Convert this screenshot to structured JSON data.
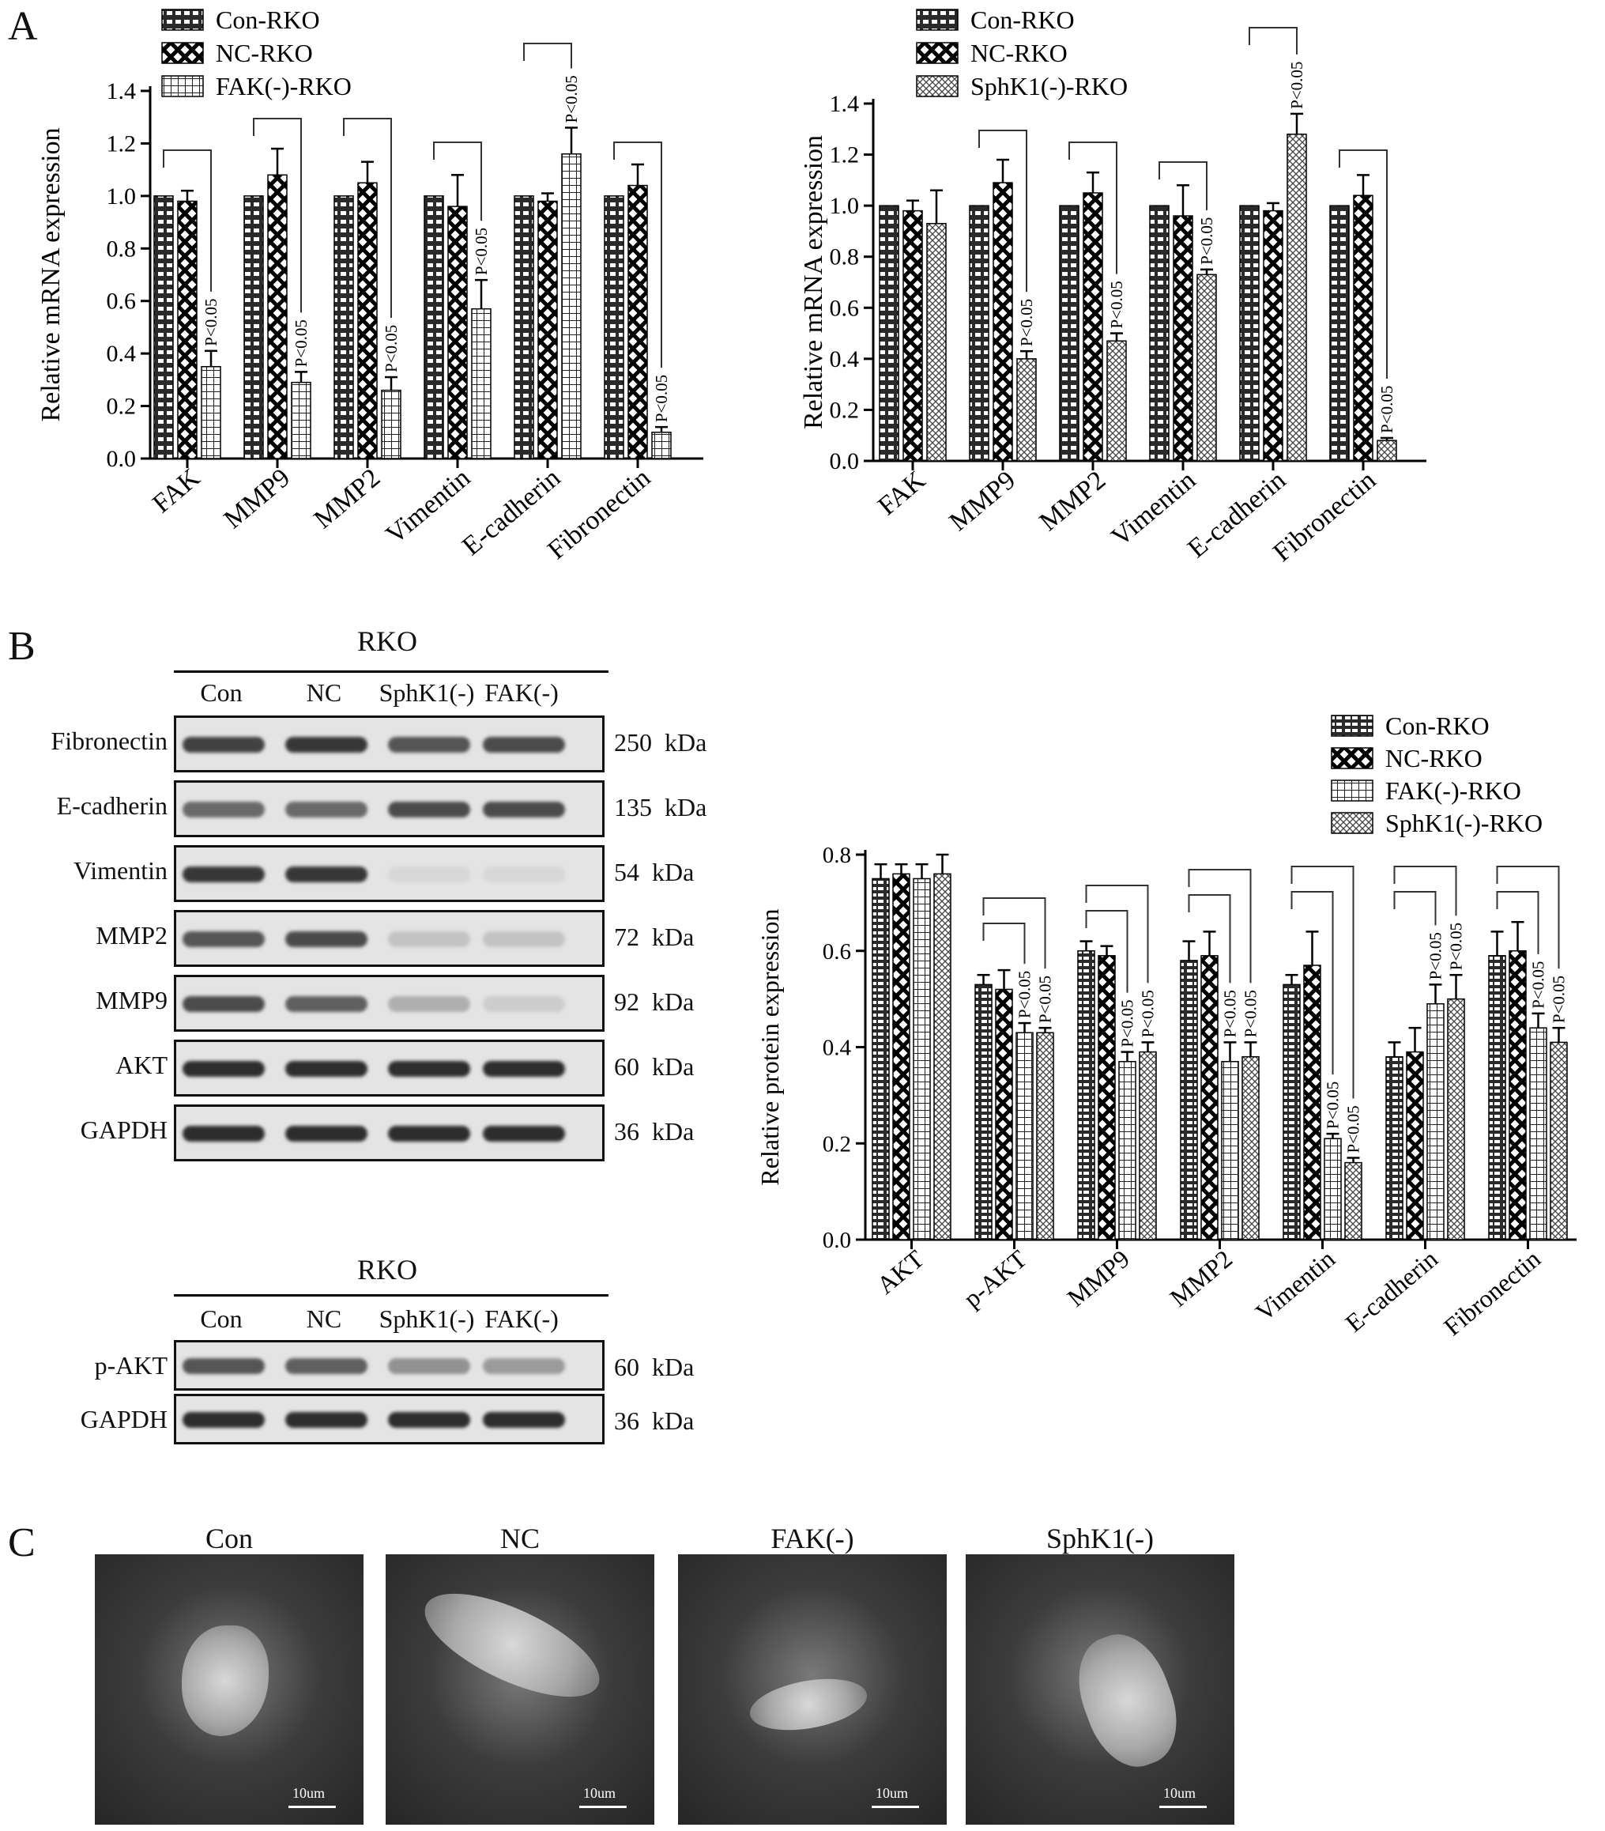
{
  "panels": {
    "a": "A",
    "b": "B",
    "c": "C"
  },
  "chart_data": [
    {
      "type": "bar",
      "ylabel": "Relative  mRNA expression",
      "ylim": [
        0,
        1.4
      ],
      "yticks": [
        "0.0",
        "0.2",
        "0.4",
        "0.6",
        "0.8",
        "1.0",
        "1.2",
        "1.4"
      ],
      "categories": [
        "FAK",
        "MMP9",
        "MMP2",
        "Vimentin",
        "E-cadherin",
        "Fibronectin"
      ],
      "series": [
        {
          "name": "Con-RKO",
          "pattern": "brick",
          "values": [
            1.0,
            1.0,
            1.0,
            1.0,
            1.0,
            1.0
          ],
          "errors": [
            0,
            0,
            0,
            0,
            0,
            0
          ]
        },
        {
          "name": "NC-RKO",
          "pattern": "cross",
          "values": [
            0.98,
            1.08,
            1.05,
            0.96,
            0.98,
            1.04
          ],
          "errors": [
            0.04,
            0.1,
            0.08,
            0.12,
            0.03,
            0.08
          ]
        },
        {
          "name": "FAK(-)-RKO",
          "pattern": "grid",
          "values": [
            0.35,
            0.29,
            0.26,
            0.57,
            1.16,
            0.1
          ],
          "errors": [
            0.06,
            0.04,
            0.05,
            0.11,
            0.1,
            0.02
          ]
        }
      ],
      "annotations": [
        {
          "category": 0,
          "series": 2,
          "text": "P<0.05",
          "bracket_from": 0,
          "bracket_to": 2
        },
        {
          "category": 1,
          "series": 2,
          "text": "P<0.05",
          "bracket_from": 0,
          "bracket_to": 2
        },
        {
          "category": 2,
          "series": 2,
          "text": "P<0.05",
          "bracket_from": 0,
          "bracket_to": 2
        },
        {
          "category": 3,
          "series": 2,
          "text": "P<0.05",
          "bracket_from": 0,
          "bracket_to": 2
        },
        {
          "category": 4,
          "series": 2,
          "text": "P<0.05",
          "bracket_from": 0,
          "bracket_to": 2
        },
        {
          "category": 5,
          "series": 2,
          "text": "P<0.05",
          "bracket_from": 0,
          "bracket_to": 2
        }
      ]
    },
    {
      "type": "bar",
      "ylabel": "Relative  mRNA expression",
      "ylim": [
        0,
        1.4
      ],
      "yticks": [
        "0.0",
        "0.2",
        "0.4",
        "0.6",
        "0.8",
        "1.0",
        "1.2",
        "1.4"
      ],
      "categories": [
        "FAK",
        "MMP9",
        "MMP2",
        "Vimentin",
        "E-cadherin",
        "Fibronectin"
      ],
      "series": [
        {
          "name": "Con-RKO",
          "pattern": "brick",
          "values": [
            1.0,
            1.0,
            1.0,
            1.0,
            1.0,
            1.0
          ],
          "errors": [
            0,
            0,
            0,
            0,
            0,
            0
          ]
        },
        {
          "name": "NC-RKO",
          "pattern": "cross",
          "values": [
            0.98,
            1.09,
            1.05,
            0.96,
            0.98,
            1.04
          ],
          "errors": [
            0.04,
            0.09,
            0.08,
            0.12,
            0.03,
            0.08
          ]
        },
        {
          "name": "SphK1(-)-RKO",
          "pattern": "dots",
          "values": [
            0.93,
            0.4,
            0.47,
            0.73,
            1.28,
            0.08
          ],
          "errors": [
            0.13,
            0.03,
            0.03,
            0.02,
            0.08,
            0.01
          ]
        }
      ],
      "annotations": [
        {
          "category": 1,
          "series": 2,
          "text": "P<0.05",
          "bracket_from": 0,
          "bracket_to": 2
        },
        {
          "category": 2,
          "series": 2,
          "text": "P<0.05",
          "bracket_from": 0,
          "bracket_to": 2
        },
        {
          "category": 3,
          "series": 2,
          "text": "P<0.05",
          "bracket_from": 0,
          "bracket_to": 2
        },
        {
          "category": 4,
          "series": 2,
          "text": "P<0.05",
          "bracket_from": 0,
          "bracket_to": 2
        },
        {
          "category": 5,
          "series": 2,
          "text": "P<0.05",
          "bracket_from": 0,
          "bracket_to": 2
        }
      ]
    },
    {
      "type": "bar",
      "ylabel": "Relative protein expression",
      "ylim": [
        0,
        0.8
      ],
      "yticks": [
        "0.0",
        "0.2",
        "0.4",
        "0.6",
        "0.8"
      ],
      "categories": [
        "AKT",
        "p-AKT",
        "MMP9",
        "MMP2",
        "Vimentin",
        "E-cadherin",
        "Fibronectin"
      ],
      "series": [
        {
          "name": "Con-RKO",
          "pattern": "brickH",
          "values": [
            0.75,
            0.53,
            0.6,
            0.58,
            0.53,
            0.38,
            0.59
          ],
          "errors": [
            0.03,
            0.02,
            0.02,
            0.04,
            0.02,
            0.03,
            0.05
          ]
        },
        {
          "name": "NC-RKO",
          "pattern": "cross",
          "values": [
            0.76,
            0.52,
            0.59,
            0.59,
            0.57,
            0.39,
            0.6
          ],
          "errors": [
            0.02,
            0.04,
            0.02,
            0.05,
            0.07,
            0.05,
            0.06
          ]
        },
        {
          "name": "FAK(-)-RKO",
          "pattern": "grid",
          "values": [
            0.75,
            0.43,
            0.37,
            0.37,
            0.21,
            0.49,
            0.44
          ],
          "errors": [
            0.03,
            0.02,
            0.02,
            0.04,
            0.01,
            0.04,
            0.03
          ]
        },
        {
          "name": "SphK1(-)-RKO",
          "pattern": "dots",
          "values": [
            0.76,
            0.43,
            0.39,
            0.38,
            0.16,
            0.5,
            0.41
          ],
          "errors": [
            0.04,
            0.01,
            0.02,
            0.03,
            0.01,
            0.05,
            0.03
          ]
        }
      ],
      "annotations": [
        {
          "category": 1,
          "series": 2,
          "text": "P<0.05",
          "bracket_from": 0,
          "bracket_to": 2
        },
        {
          "category": 1,
          "series": 3,
          "text": "P<0.05",
          "bracket_from": 0,
          "bracket_to": 3
        },
        {
          "category": 2,
          "series": 2,
          "text": "P<0.05",
          "bracket_from": 0,
          "bracket_to": 2
        },
        {
          "category": 2,
          "series": 3,
          "text": "P<0.05",
          "bracket_from": 0,
          "bracket_to": 3
        },
        {
          "category": 3,
          "series": 2,
          "text": "P<0.05",
          "bracket_from": 0,
          "bracket_to": 2
        },
        {
          "category": 3,
          "series": 3,
          "text": "P<0.05",
          "bracket_from": 0,
          "bracket_to": 3
        },
        {
          "category": 4,
          "series": 2,
          "text": "P<0.05",
          "bracket_from": 0,
          "bracket_to": 2
        },
        {
          "category": 4,
          "series": 3,
          "text": "P<0.05",
          "bracket_from": 0,
          "bracket_to": 3
        },
        {
          "category": 5,
          "series": 2,
          "text": "P<0.05",
          "bracket_from": 0,
          "bracket_to": 2
        },
        {
          "category": 5,
          "series": 3,
          "text": "P<0.05",
          "bracket_from": 0,
          "bracket_to": 3
        },
        {
          "category": 6,
          "series": 2,
          "text": "P<0.05",
          "bracket_from": 0,
          "bracket_to": 2
        },
        {
          "category": 6,
          "series": 3,
          "text": "P<0.05",
          "bracket_from": 0,
          "bracket_to": 3
        }
      ]
    }
  ],
  "blots": [
    {
      "title": "RKO",
      "lanes": [
        "Con",
        "NC",
        "SphK1(-)",
        "FAK(-)"
      ],
      "rows": [
        {
          "protein": "Fibronectin",
          "size": "250  kDa",
          "intensity": [
            0.85,
            0.9,
            0.75,
            0.8
          ]
        },
        {
          "protein": "E-cadherin",
          "size": "135  kDa",
          "intensity": [
            0.65,
            0.65,
            0.8,
            0.8
          ]
        },
        {
          "protein": "Vimentin",
          "size": "54  kDa",
          "intensity": [
            0.9,
            0.9,
            0.1,
            0.1
          ]
        },
        {
          "protein": "MMP2",
          "size": "72  kDa",
          "intensity": [
            0.75,
            0.8,
            0.2,
            0.2
          ]
        },
        {
          "protein": "MMP9",
          "size": "92  kDa",
          "intensity": [
            0.8,
            0.7,
            0.3,
            0.15
          ]
        },
        {
          "protein": "AKT",
          "size": "60  kDa",
          "intensity": [
            0.95,
            0.95,
            0.95,
            0.95
          ]
        },
        {
          "protein": "GAPDH",
          "size": "36  kDa",
          "intensity": [
            0.95,
            0.95,
            0.95,
            0.95
          ]
        }
      ]
    },
    {
      "title": "RKO",
      "lanes": [
        "Con",
        "NC",
        "SphK1(-)",
        "FAK(-)"
      ],
      "rows": [
        {
          "protein": "p-AKT",
          "size": "60  kDa",
          "intensity": [
            0.75,
            0.7,
            0.45,
            0.4
          ]
        },
        {
          "protein": "GAPDH",
          "size": "36  kDa",
          "intensity": [
            0.95,
            0.95,
            0.95,
            0.95
          ]
        }
      ]
    }
  ],
  "sem": [
    {
      "title": "Con",
      "scale": "10um"
    },
    {
      "title": "NC",
      "scale": "10um"
    },
    {
      "title": "FAK(-)",
      "scale": "10um"
    },
    {
      "title": "SphK1(-)",
      "scale": "10um"
    }
  ]
}
